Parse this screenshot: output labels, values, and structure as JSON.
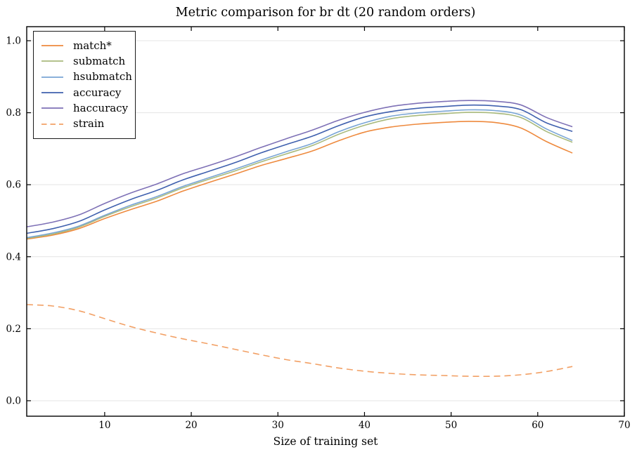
{
  "chart_data": {
    "type": "line",
    "title": "Metric comparison for br dt (20 random orders)",
    "xlabel": "Size of training set",
    "ylabel": "",
    "xlim": [
      1,
      70
    ],
    "ylim": [
      -0.043,
      1.039
    ],
    "x_ticks": [
      10,
      20,
      30,
      40,
      50,
      60,
      70
    ],
    "y_ticks": [
      {
        "value": 0.0,
        "label": "0.0"
      },
      {
        "value": 0.2,
        "label": "0.2"
      },
      {
        "value": 0.4,
        "label": "0.4"
      },
      {
        "value": 0.6,
        "label": "0.6"
      },
      {
        "value": 0.8,
        "label": "0.8"
      },
      {
        "value": 1.0,
        "label": "1.0"
      }
    ],
    "grid": "horizontal",
    "legend_position": "upper left",
    "x": [
      1,
      4,
      7,
      10,
      13,
      16,
      19,
      22,
      25,
      28,
      31,
      34,
      37,
      40,
      43,
      46,
      49,
      52,
      55,
      58,
      61,
      64
    ],
    "series": [
      {
        "name": "match*",
        "color": "#ee8a3e",
        "style": "solid",
        "values": [
          0.449,
          0.46,
          0.478,
          0.506,
          0.531,
          0.554,
          0.582,
          0.606,
          0.629,
          0.653,
          0.673,
          0.694,
          0.722,
          0.746,
          0.76,
          0.768,
          0.773,
          0.776,
          0.773,
          0.758,
          0.72,
          0.688
        ]
      },
      {
        "name": "submatch",
        "color": "#a9ba7d",
        "style": "solid",
        "values": [
          0.451,
          0.463,
          0.482,
          0.512,
          0.539,
          0.563,
          0.591,
          0.615,
          0.638,
          0.663,
          0.686,
          0.709,
          0.74,
          0.765,
          0.783,
          0.792,
          0.797,
          0.801,
          0.799,
          0.787,
          0.748,
          0.718
        ]
      },
      {
        "name": "hsubmatch",
        "color": "#79a5d5",
        "style": "solid",
        "values": [
          0.453,
          0.466,
          0.485,
          0.515,
          0.543,
          0.567,
          0.595,
          0.619,
          0.643,
          0.668,
          0.692,
          0.715,
          0.747,
          0.772,
          0.79,
          0.799,
          0.804,
          0.808,
          0.806,
          0.794,
          0.755,
          0.723
        ]
      },
      {
        "name": "accuracy",
        "color": "#3f60ae",
        "style": "solid",
        "values": [
          0.465,
          0.478,
          0.498,
          0.53,
          0.559,
          0.584,
          0.613,
          0.637,
          0.661,
          0.688,
          0.712,
          0.735,
          0.764,
          0.788,
          0.803,
          0.812,
          0.817,
          0.821,
          0.819,
          0.809,
          0.772,
          0.748
        ]
      },
      {
        "name": "haccuracy",
        "color": "#7e71b6",
        "style": "solid",
        "values": [
          0.483,
          0.496,
          0.516,
          0.548,
          0.577,
          0.602,
          0.63,
          0.653,
          0.677,
          0.703,
          0.728,
          0.752,
          0.779,
          0.801,
          0.817,
          0.826,
          0.831,
          0.834,
          0.832,
          0.822,
          0.787,
          0.761
        ]
      },
      {
        "name": "strain",
        "color": "#f2a065",
        "style": "dashed",
        "values": [
          0.267,
          0.263,
          0.25,
          0.228,
          0.206,
          0.188,
          0.172,
          0.158,
          0.143,
          0.128,
          0.114,
          0.103,
          0.091,
          0.082,
          0.076,
          0.072,
          0.07,
          0.068,
          0.068,
          0.072,
          0.081,
          0.095
        ]
      }
    ]
  }
}
